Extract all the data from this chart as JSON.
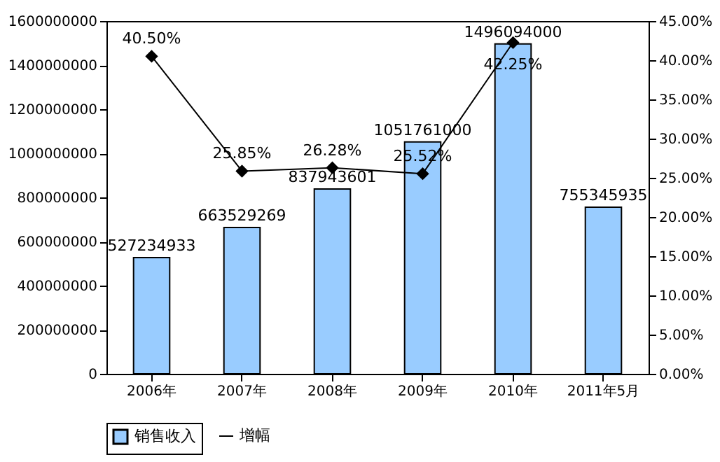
{
  "chart_data": {
    "type": "bar",
    "categories": [
      "2006年",
      "2007年",
      "2008年",
      "2009年",
      "2010年",
      "2011年5月"
    ],
    "series": [
      {
        "name": "销售收入",
        "color": "#99ccff",
        "values": [
          527234933,
          663529269,
          837943601,
          1051761000,
          1496094000,
          755345935
        ],
        "value_labels": [
          "527234933",
          "663529269",
          "837943601",
          "1051761000",
          "1496094000",
          "755345935"
        ]
      },
      {
        "name": "增幅",
        "type": "line",
        "axis": "y2",
        "color": "#000000",
        "marker": "diamond",
        "line_style": "solid",
        "values": [
          40.5,
          25.85,
          26.28,
          25.52,
          42.25,
          null
        ],
        "value_labels": [
          "40.50%",
          "25.85%",
          "26.28%",
          "25.52%",
          "42.25%",
          null
        ]
      }
    ],
    "ylim": [
      0,
      1600000000
    ],
    "yticks": [
      0,
      200000000,
      400000000,
      600000000,
      800000000,
      1000000000,
      1200000000,
      1400000000,
      1600000000
    ],
    "y2lim": [
      0,
      45
    ],
    "y2ticks": [
      {
        "value": 0,
        "label": "0.00%"
      },
      {
        "value": 5,
        "label": "5.00%"
      },
      {
        "value": 10,
        "label": "10.00%"
      },
      {
        "value": 15,
        "label": "15.00%"
      },
      {
        "value": 20,
        "label": "20.00%"
      },
      {
        "value": 25,
        "label": "25.00%"
      },
      {
        "value": 30,
        "label": "30.00%"
      },
      {
        "value": 35,
        "label": "35.00%"
      },
      {
        "value": 40,
        "label": "40.00%"
      },
      {
        "value": 45,
        "label": "45.00%"
      }
    ],
    "legend": "bottom",
    "grid": false
  }
}
